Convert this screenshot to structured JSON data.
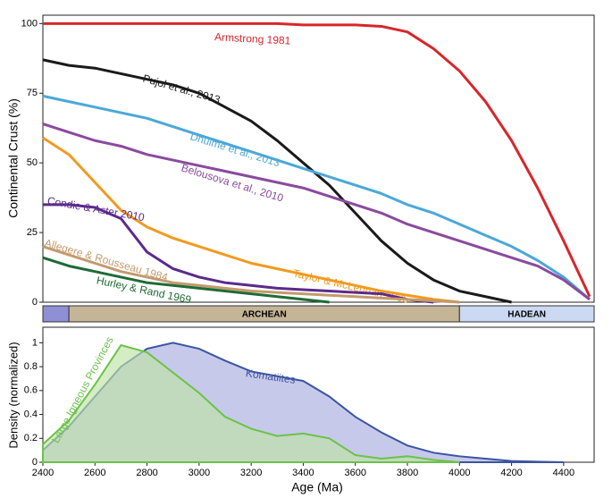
{
  "chart_data": [
    {
      "type": "line",
      "ylabel": "Continental Crust (%)",
      "x": [
        2400,
        2500,
        2600,
        2700,
        2800,
        2900,
        3000,
        3100,
        3200,
        3300,
        3400,
        3500,
        3600,
        3700,
        3800,
        3900,
        4000,
        4100,
        4200,
        4300,
        4400,
        4500
      ],
      "xlim": [
        2400,
        4500
      ],
      "ylim": [
        0,
        103
      ],
      "yticks": [
        0,
        25,
        50,
        75,
        100
      ],
      "series": [
        {
          "name": "Armstrong 1981",
          "color": "#d7262b",
          "values": [
            100,
            100,
            100,
            100,
            100,
            100,
            100,
            100,
            100,
            100,
            99.5,
            99.5,
            99.5,
            99,
            97,
            91,
            83,
            72,
            58,
            41,
            22,
            2
          ]
        },
        {
          "name": "Pujol et al., 2013",
          "color": "#1a1a1a",
          "values": [
            87,
            85,
            84,
            82,
            80,
            78,
            75,
            70,
            65,
            58,
            50,
            42,
            32,
            22,
            14,
            8,
            4,
            2,
            0,
            null,
            null,
            null
          ]
        },
        {
          "name": "Dhuime et al., 2013",
          "color": "#4ba8d8",
          "values": [
            74,
            72,
            70,
            68,
            66,
            63,
            60,
            57,
            54,
            51,
            48,
            45,
            42,
            39,
            35,
            32,
            28,
            24,
            20,
            15,
            9,
            1
          ]
        },
        {
          "name": "Belousova et al., 2010",
          "color": "#8a4a9e",
          "values": [
            64,
            61,
            58,
            56,
            53,
            51,
            49,
            47,
            45,
            43,
            41,
            38,
            35,
            32,
            28,
            25,
            22,
            19,
            16,
            13,
            8,
            1
          ]
        },
        {
          "name": "Taylor & McLennan 1995",
          "color": "#f29a1f",
          "values": [
            59,
            53,
            43,
            33,
            27,
            23,
            20,
            17,
            14,
            12,
            10,
            8,
            6,
            4,
            2.5,
            1,
            0,
            null,
            null,
            null,
            null,
            null
          ]
        },
        {
          "name": "Condie & Aster 2010",
          "color": "#5b2a8c",
          "values": [
            35,
            35,
            34,
            30,
            18,
            12,
            9,
            7,
            6,
            5,
            4.5,
            4,
            3.5,
            3,
            1,
            0,
            null,
            null,
            null,
            null,
            null,
            null
          ]
        },
        {
          "name": "Allegere & Rousseau 1984",
          "color": "#c49a6c",
          "values": [
            20,
            17,
            14,
            11,
            9,
            7,
            6,
            5,
            4,
            3.5,
            3,
            2.5,
            2,
            1.5,
            1,
            0.5,
            0,
            null,
            null,
            null,
            null,
            null
          ]
        },
        {
          "name": "Hurley & Rand 1969",
          "color": "#1e6b35",
          "values": [
            16,
            13,
            11,
            9,
            7,
            6,
            5,
            4,
            3,
            2,
            1,
            0,
            null,
            null,
            null,
            null,
            null,
            null,
            null,
            null,
            null,
            null
          ]
        }
      ]
    },
    {
      "type": "area",
      "ylabel": "Density (normalized)",
      "xlabel": "Age (Ma)",
      "x": [
        2400,
        2500,
        2600,
        2700,
        2800,
        2900,
        3000,
        3100,
        3200,
        3300,
        3400,
        3500,
        3600,
        3700,
        3800,
        3900,
        4000,
        4100,
        4200,
        4300,
        4400,
        4500
      ],
      "xlim": [
        2400,
        4500
      ],
      "xticks": [
        2400,
        2600,
        2800,
        3000,
        3200,
        3400,
        3600,
        3800,
        4000,
        4200,
        4400
      ],
      "ylim": [
        0,
        1.13
      ],
      "yticks": [
        0,
        0.2,
        0.4,
        0.6,
        0.8,
        1
      ],
      "series": [
        {
          "name": "Komatiites",
          "color": "#3a55a0",
          "fill": "#a9ace0",
          "values": [
            0.1,
            0.3,
            0.55,
            0.8,
            0.95,
            1,
            0.95,
            0.85,
            0.76,
            0.72,
            0.68,
            0.55,
            0.38,
            0.25,
            0.14,
            0.08,
            0.05,
            0.03,
            0.01,
            0.005,
            0,
            null
          ]
        },
        {
          "name": "Large Igneous Provinces",
          "color": "#6cc24a",
          "fill": "#bfe3a4",
          "values": [
            0.15,
            0.35,
            0.65,
            0.98,
            0.92,
            0.75,
            0.58,
            0.38,
            0.28,
            0.22,
            0.24,
            0.2,
            0.06,
            0.03,
            0.05,
            0.02,
            0,
            null,
            null,
            null,
            null,
            null
          ]
        }
      ]
    }
  ],
  "eons": [
    {
      "name": null,
      "start": 2400,
      "end": 2500,
      "color": "#8f8fd6"
    },
    {
      "name": "ARCHEAN",
      "start": 2500,
      "end": 4000,
      "color": "#c4b596"
    },
    {
      "name": "HADEAN",
      "start": 4000,
      "end": 4500,
      "color": "#ccd9f2"
    }
  ]
}
